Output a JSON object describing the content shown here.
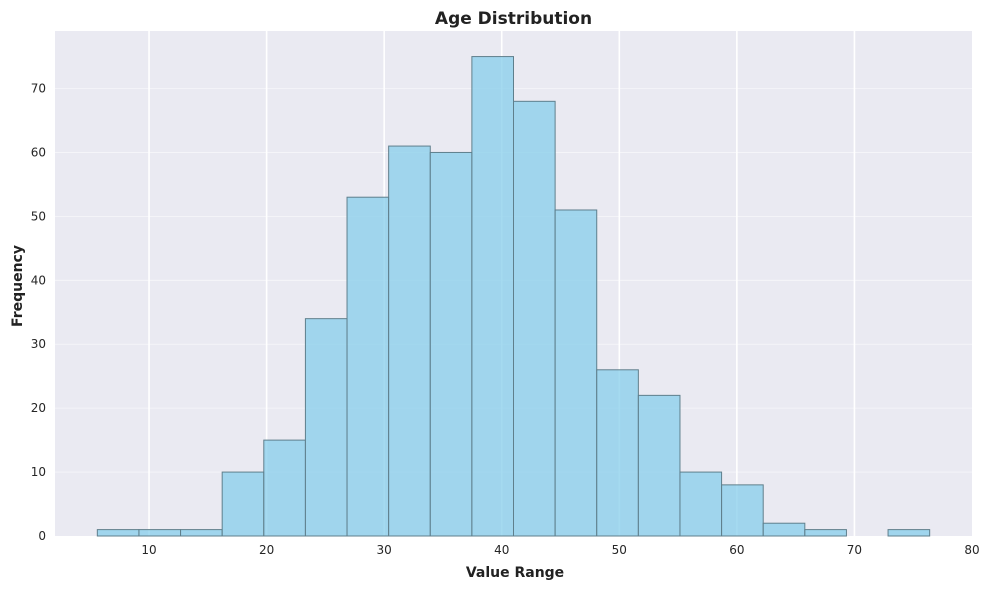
{
  "chart_data": {
    "type": "bar",
    "title": "Age Distribution",
    "xlabel": "Value Range",
    "ylabel": "Frequency",
    "xlim": [
      2,
      80
    ],
    "ylim": [
      0,
      79
    ],
    "xticks": [
      10,
      20,
      30,
      40,
      50,
      60,
      70,
      80
    ],
    "yticks": [
      0,
      10,
      20,
      30,
      40,
      50,
      60,
      70
    ],
    "grid": true,
    "bins": [
      {
        "start": 5.6,
        "end": 9.14,
        "count": 1
      },
      {
        "start": 9.14,
        "end": 12.68,
        "count": 1
      },
      {
        "start": 12.68,
        "end": 16.22,
        "count": 1
      },
      {
        "start": 16.22,
        "end": 19.76,
        "count": 10
      },
      {
        "start": 19.76,
        "end": 23.3,
        "count": 15
      },
      {
        "start": 23.3,
        "end": 26.84,
        "count": 34
      },
      {
        "start": 26.84,
        "end": 30.38,
        "count": 53
      },
      {
        "start": 30.38,
        "end": 33.92,
        "count": 61
      },
      {
        "start": 33.92,
        "end": 37.46,
        "count": 60
      },
      {
        "start": 37.46,
        "end": 41.0,
        "count": 75
      },
      {
        "start": 41.0,
        "end": 44.54,
        "count": 68
      },
      {
        "start": 44.54,
        "end": 48.08,
        "count": 51
      },
      {
        "start": 48.08,
        "end": 51.62,
        "count": 26
      },
      {
        "start": 51.62,
        "end": 55.16,
        "count": 22
      },
      {
        "start": 55.16,
        "end": 58.7,
        "count": 10
      },
      {
        "start": 58.7,
        "end": 62.24,
        "count": 8
      },
      {
        "start": 62.24,
        "end": 65.78,
        "count": 2
      },
      {
        "start": 65.78,
        "end": 69.32,
        "count": 1
      },
      {
        "start": 69.32,
        "end": 72.86,
        "count": 0
      },
      {
        "start": 72.86,
        "end": 76.4,
        "count": 1
      }
    ],
    "colors": {
      "bar_fill": "#87CEEB",
      "bar_edge": "#5f7f8c",
      "plot_background": "#EAEAF2",
      "grid": "#ffffff"
    }
  }
}
